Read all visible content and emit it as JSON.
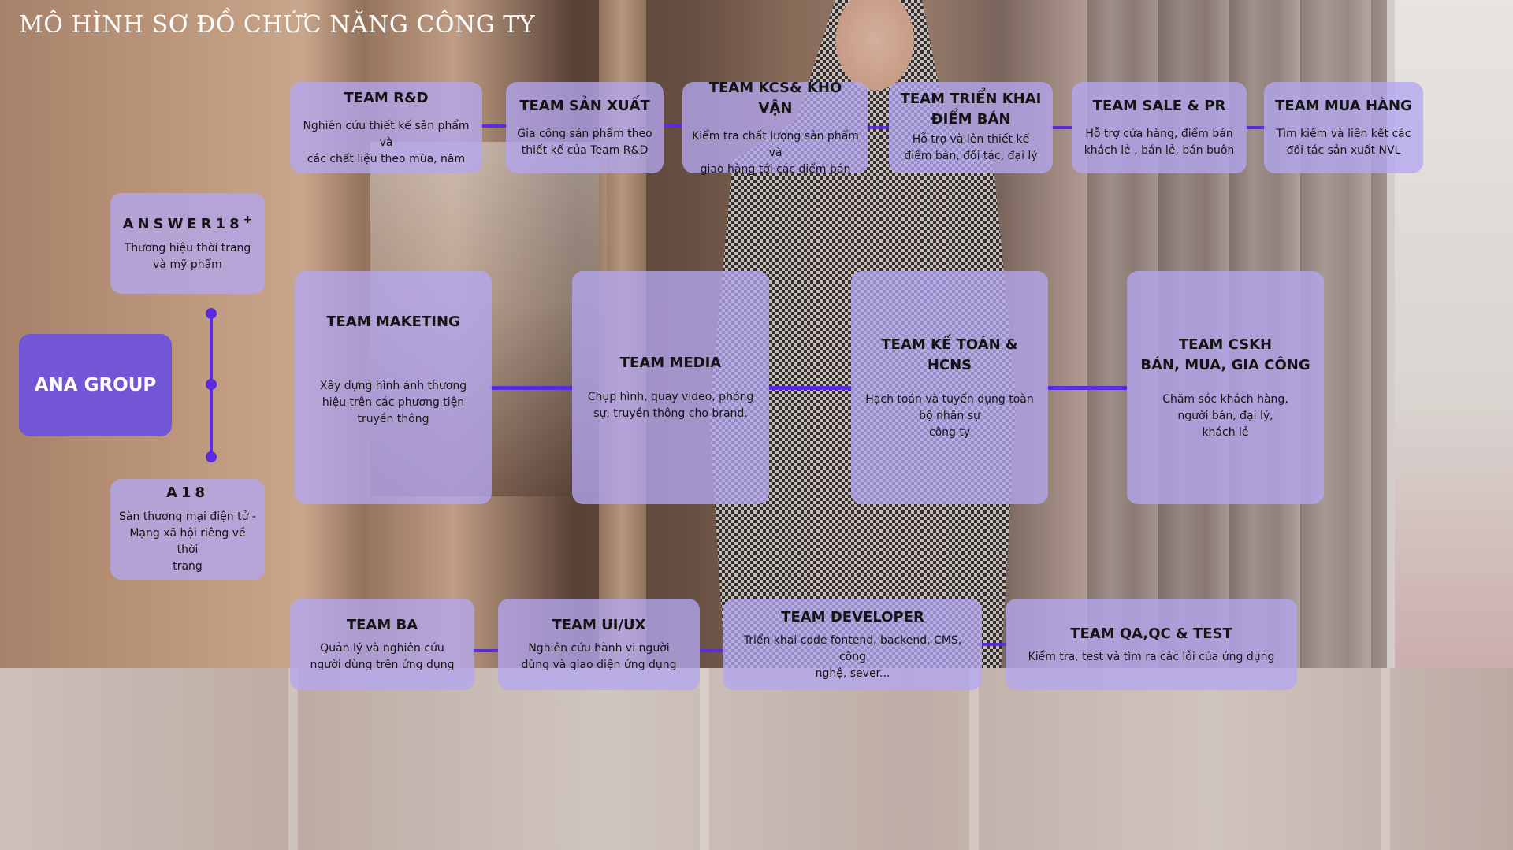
{
  "title": "MÔ HÌNH SƠ ĐỒ CHỨC NĂNG CÔNG TY",
  "root": {
    "label": "ANA GROUP"
  },
  "brands": [
    {
      "name": "ANSWER18",
      "sup": "+",
      "desc": "Thương hiệu thời trang\nvà mỹ phẩm"
    },
    {
      "name": "A18",
      "sup": "",
      "desc": "Sàn thương mại điện tử -\nMạng xã hội riêng về thời\ntrang"
    }
  ],
  "top_teams": [
    {
      "name": "TEAM R&D",
      "desc": "Nghiên cứu thiết kế sản phẩm và\ncác chất liệu theo mùa, năm"
    },
    {
      "name": "TEAM SẢN XUẤT",
      "desc": "Gia công sản phẩm theo\nthiết kế của Team R&D"
    },
    {
      "name": "TEAM KCS& KHO VẬN",
      "desc": "Kiểm tra chất lượng sản phẩm và\ngiao hàng tới các điểm bán"
    },
    {
      "name": "TEAM TRIỂN KHAI\nĐIỂM BÁN",
      "desc": "Hỗ trợ và lên thiết kế\nđiểm bán, đối tác, đại lý"
    },
    {
      "name": "TEAM SALE & PR",
      "desc": "Hỗ trợ cửa hàng, điểm bán\nkhách lẻ , bán lẻ, bán buôn"
    },
    {
      "name": "TEAM MUA HÀNG",
      "desc": "Tìm kiếm và liên kết các\nđối tác sản xuất NVL"
    }
  ],
  "middle_teams": [
    {
      "name": "TEAM MAKETING",
      "desc": "Xây dựng hình ảnh thương\nhiệu trên các phương tiện\ntruyền thông"
    },
    {
      "name": "TEAM MEDIA",
      "desc": "Chụp hình, quay video, phóng\nsự, truyền thông cho brand."
    },
    {
      "name": "TEAM KẾ TOÁN & HCNS",
      "desc": "Hạch toán và tuyển dụng toàn\nbộ nhân sự\ncông ty"
    },
    {
      "name": "TEAM CSKH\nBÁN, MUA, GIA CÔNG",
      "desc": "Chăm sóc khách hàng,\nngười bán, đại lý,\nkhách lẻ"
    }
  ],
  "bottom_teams": [
    {
      "name": "TEAM BA",
      "desc": "Quản lý và nghiên cứu\nngười dùng trên ứng dụng"
    },
    {
      "name": "TEAM UI/UX",
      "desc": "Nghiên cứu hành vi người\ndùng và giao diện ứng dụng"
    },
    {
      "name": "TEAM DEVELOPER",
      "desc": "Triển khai code fontend, backend, CMS, công\nnghệ, sever..."
    },
    {
      "name": "TEAM QA,QC & TEST",
      "desc": "Kiểm tra, test và tìm ra các lỗi của ứng dụng"
    }
  ],
  "colors": {
    "box_fill": "#b3a6f0",
    "root_fill": "#7356d6",
    "connector": "#5a2ce0",
    "title": "#ffffff"
  }
}
